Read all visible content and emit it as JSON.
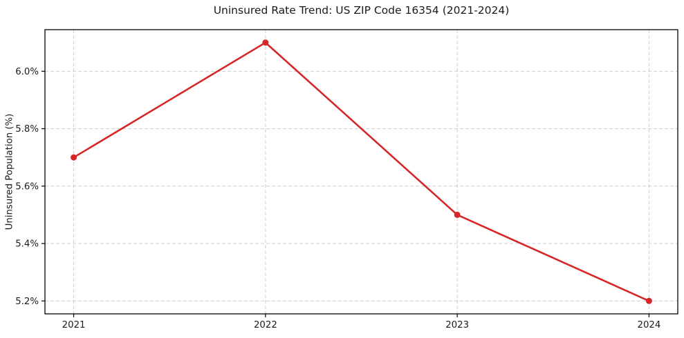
{
  "figure": {
    "background": "#ffffff"
  },
  "chart_data": {
    "type": "line",
    "title": "Uninsured Rate Trend: US ZIP Code 16354 (2021-2024)",
    "xlabel": "",
    "ylabel": "Uninsured Population (%)",
    "x": [
      2021,
      2022,
      2023,
      2024
    ],
    "series": [
      {
        "name": "uninsured-rate",
        "values": [
          5.7,
          6.1,
          5.5,
          5.2
        ]
      }
    ],
    "xlim": [
      2020.85,
      2024.15
    ],
    "ylim": [
      5.155,
      6.145
    ],
    "xticks": [
      2021,
      2022,
      2023,
      2024
    ],
    "xtick_labels": [
      "2021",
      "2022",
      "2023",
      "2024"
    ],
    "yticks": [
      5.2,
      5.4,
      5.6,
      5.8,
      6.0
    ],
    "ytick_labels": [
      "5.2%",
      "5.4%",
      "5.6%",
      "5.8%",
      "6.0%"
    ],
    "grid": true,
    "grid_style": "dashed",
    "legend": "none",
    "marker": "circle",
    "colors": {
      "line": "#d62728",
      "marker": "#d62728",
      "grid": "#cccccc",
      "spine": "#000000",
      "text": "#1a1a1a"
    }
  }
}
